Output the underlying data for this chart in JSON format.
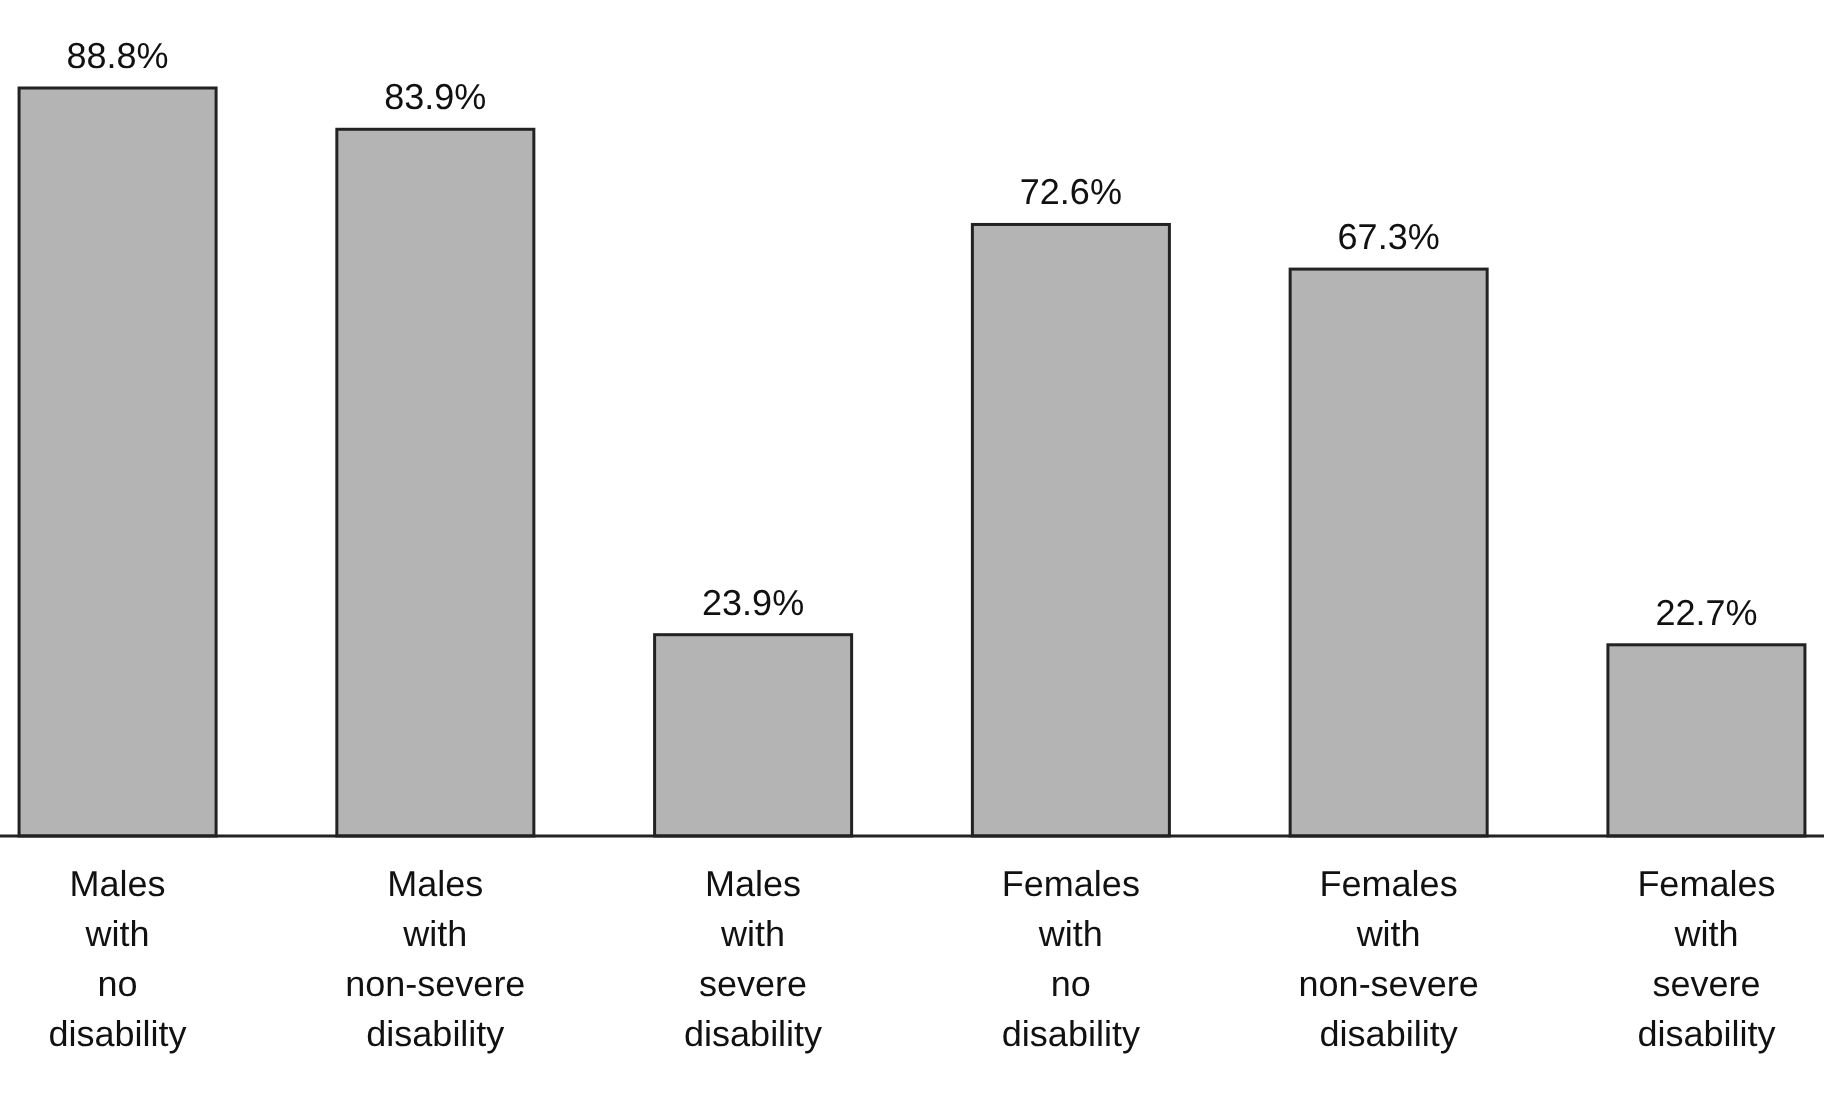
{
  "chart_data": {
    "type": "bar",
    "categories": [
      "Males with no disability",
      "Males with non-severe disability",
      "Males with severe disability",
      "Females with no disability",
      "Females with non-severe disability",
      "Females with severe disability"
    ],
    "values": [
      88.8,
      83.9,
      23.9,
      72.6,
      67.3,
      22.7
    ],
    "value_labels": [
      "88.8%",
      "83.9%",
      "23.9%",
      "72.6%",
      "67.3%",
      "22.7%"
    ],
    "color": "#b4b4b4"
  }
}
